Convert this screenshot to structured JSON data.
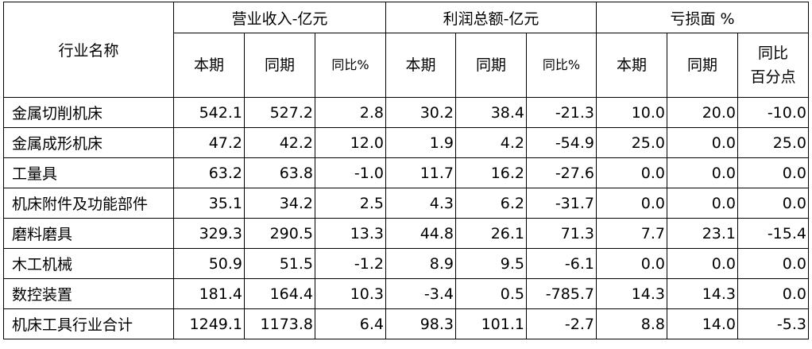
{
  "table": {
    "row_header": "行业名称",
    "groups": [
      "营业收入-亿元",
      "利润总额-亿元",
      "亏损面 %"
    ],
    "subheaders": [
      [
        "本期"
      ],
      [
        "同期"
      ],
      [
        "同比%"
      ],
      [
        "本期"
      ],
      [
        "同期"
      ],
      [
        "同比%"
      ],
      [
        "本期"
      ],
      [
        "同期"
      ],
      [
        "同比",
        "百分点"
      ]
    ],
    "rows": [
      [
        "金属切削机床",
        "542.1",
        "527.2",
        "2.8",
        "30.2",
        "38.4",
        "-21.3",
        "10.0",
        "20.0",
        "-10.0"
      ],
      [
        "金属成形机床",
        "47.2",
        "42.2",
        "12.0",
        "1.9",
        "4.2",
        "-54.9",
        "25.0",
        "0.0",
        "25.0"
      ],
      [
        "工量具",
        "63.2",
        "63.8",
        "-1.0",
        "11.7",
        "16.2",
        "-27.6",
        "0.0",
        "0.0",
        "0.0"
      ],
      [
        "机床附件及功能部件",
        "35.1",
        "34.2",
        "2.5",
        "4.3",
        "6.2",
        "-31.7",
        "0.0",
        "0.0",
        "0.0"
      ],
      [
        "磨料磨具",
        "329.3",
        "290.5",
        "13.3",
        "44.8",
        "26.1",
        "71.3",
        "7.7",
        "23.1",
        "-15.4"
      ],
      [
        "木工机械",
        "50.9",
        "51.5",
        "-1.2",
        "8.9",
        "9.5",
        "-6.1",
        "0.0",
        "0.0",
        "0.0"
      ],
      [
        "数控装置",
        "181.4",
        "164.4",
        "10.3",
        "-3.4",
        "0.5",
        "-785.7",
        "14.3",
        "14.3",
        "0.0"
      ],
      [
        "机床工具行业合计",
        "1249.1",
        "1173.8",
        "6.4",
        "98.3",
        "101.1",
        "-2.7",
        "8.8",
        "14.0",
        "-5.3"
      ]
    ]
  }
}
